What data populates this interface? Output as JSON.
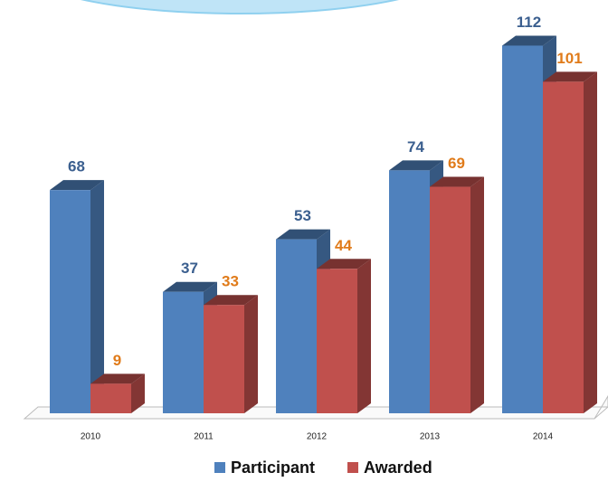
{
  "chart_data": {
    "type": "bar3d",
    "categories": [
      "2010",
      "2011",
      "2012",
      "2013",
      "2014"
    ],
    "series": [
      {
        "name": "Participant",
        "color": "#4f81bd",
        "label_color": "#3b5f8f",
        "values": [
          68,
          37,
          53,
          74,
          112
        ]
      },
      {
        "name": "Awarded",
        "color": "#c0504d",
        "label_color": "#e07b1a",
        "values": [
          9,
          33,
          44,
          69,
          101
        ]
      }
    ]
  }
}
